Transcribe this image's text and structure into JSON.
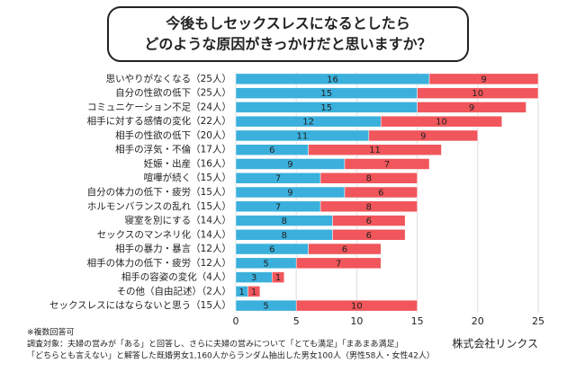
{
  "chart_data": {
    "type": "stacked-barh",
    "title_lines": [
      "今後もしセックスレスになるとしたら",
      "どのような原因がきっかけだと思いますか？"
    ],
    "categories": [
      "思いやりがなくなる（25人）",
      "自分の性欲の低下（25人）",
      "コミュニケーション不足（24人）",
      "相手に対する感情の変化（22人）",
      "相手の性欲の低下（20人）",
      "相手の浮気・不倫（17人）",
      "妊娠・出産（16人）",
      "喧嘩が続く（15人）",
      "自分の体力の低下・疲労（15人）",
      "ホルモンバランスの乱れ（15人）",
      "寝室を別にする（14人）",
      "セックスのマンネリ化（14人）",
      "相手の暴力・暴言（12人）",
      "相手の体力の低下・疲労（12人）",
      "相手の容姿の変化（4人）",
      "その他（自由記述）（2人）",
      "セックスレスにはならないと思う（15人）"
    ],
    "series": [
      {
        "color": "#3bb0dc",
        "values": [
          16,
          15,
          15,
          12,
          11,
          6,
          9,
          7,
          9,
          7,
          8,
          8,
          6,
          5,
          3,
          1,
          5
        ]
      },
      {
        "color": "#f0565b",
        "values": [
          9,
          10,
          9,
          10,
          9,
          11,
          7,
          8,
          6,
          8,
          6,
          6,
          6,
          7,
          1,
          1,
          10
        ]
      }
    ],
    "xlim": [
      0,
      25
    ],
    "xticks": [
      0,
      5,
      10,
      15,
      20,
      25
    ],
    "grid": true,
    "notes": [
      "※複数回答可",
      "調査対象：夫婦の営みが「ある」と回答し、さらに夫婦の営みについて「とても満足」「まあまあ満足」",
      "「どちらとも言えない」と解答した既婚男女1,160人からランダム抽出した男女100人（男性58人・女性42人）"
    ],
    "source": "株式会社リンクス"
  }
}
